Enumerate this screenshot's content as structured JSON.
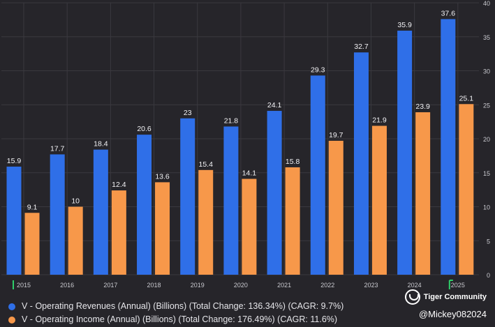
{
  "chart_data": {
    "type": "bar",
    "categories": [
      "2015",
      "2016",
      "2017",
      "2018",
      "2019",
      "2020",
      "2021",
      "2022",
      "2023",
      "2024",
      "2025"
    ],
    "series": [
      {
        "name": "V - Operating Revenues (Annual) (Billions) (Total Change: 136.34%) (CAGR: 9.7%)",
        "color": "#2f6fe8",
        "values": [
          15.9,
          17.7,
          18.4,
          20.6,
          23,
          21.8,
          24.1,
          29.3,
          32.7,
          35.9,
          37.6
        ]
      },
      {
        "name": "V - Operating Income (Annual) (Billions) (Total Change: 176.49%) (CAGR: 11.6%)",
        "color": "#f7984a",
        "values": [
          9.1,
          10,
          12.4,
          13.6,
          15.4,
          14.1,
          15.8,
          19.7,
          21.9,
          23.9,
          25.1
        ]
      }
    ],
    "ylim": [
      0,
      40
    ],
    "yticks": [
      0,
      5,
      10,
      15,
      20,
      25,
      30,
      35,
      40
    ],
    "y_axis_side": "right",
    "grid": true,
    "title": "",
    "xlabel": "",
    "ylabel": ""
  },
  "watermark": {
    "brand": "Tiger Community",
    "handle": "@Mickey082024"
  },
  "colors": {
    "background": "#26252a",
    "grid": "#3a393f",
    "marker": "#2fcf6a"
  }
}
